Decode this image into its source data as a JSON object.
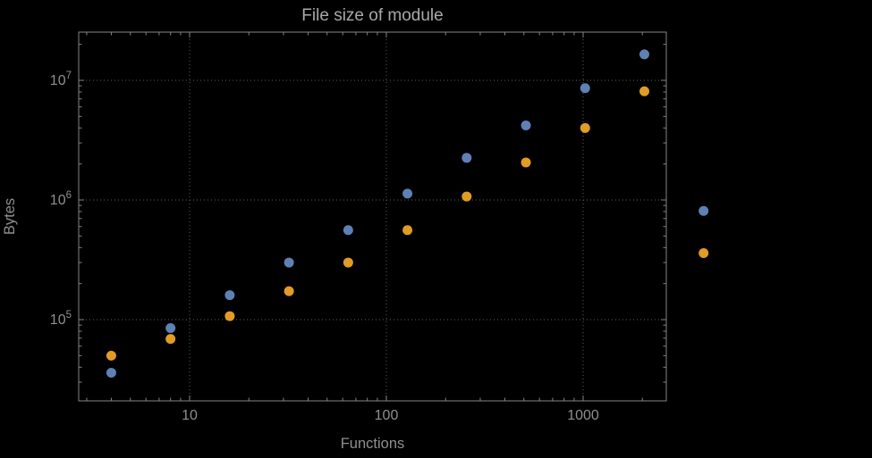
{
  "page": {
    "background": "#000000"
  },
  "chart_data": {
    "type": "scatter",
    "title": "File size of module",
    "xlabel": "Functions",
    "ylabel": "Bytes",
    "x_scale": "log",
    "y_scale": "log",
    "grid": "dotted",
    "legend": "none",
    "x_tick_labels": [
      "10",
      "100",
      "1000"
    ],
    "x_tick_values": [
      10,
      100,
      1000
    ],
    "y_tick_labels": [
      {
        "base": "10",
        "exp": "5"
      },
      {
        "base": "10",
        "exp": "6"
      },
      {
        "base": "10",
        "exp": "7"
      }
    ],
    "y_tick_values": [
      100000,
      1000000,
      10000000
    ],
    "x_range": [
      2.7,
      2650
    ],
    "y_range": [
      21000,
      25000000
    ],
    "x": [
      4,
      8,
      16,
      32,
      64,
      128,
      256,
      512,
      1024,
      2048,
      4096
    ],
    "series": [
      {
        "name": "series-1-blue",
        "color": "#5E81B5",
        "values": [
          36000,
          85000,
          160000,
          300000,
          560000,
          1130000,
          2250000,
          4200000,
          8600000,
          16500000,
          810000
        ]
      },
      {
        "name": "series-2-orange",
        "color": "#E19C24",
        "values": [
          50000,
          69000,
          107000,
          173000,
          300000,
          560000,
          1070000,
          2060000,
          4000000,
          8100000,
          360000
        ]
      }
    ],
    "colors": {
      "title_text": "#a8a8a8",
      "axis_text": "#8f8f8f",
      "frame": "#848484",
      "grid": "#5c5c5c",
      "background": "#000000"
    }
  }
}
